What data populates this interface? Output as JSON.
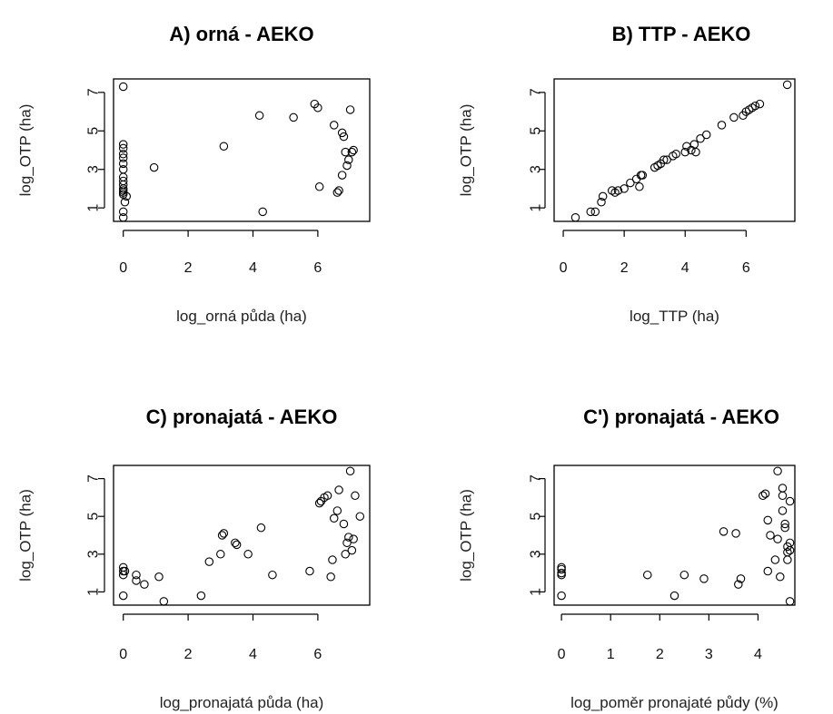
{
  "chart_data": [
    {
      "type": "scatter",
      "title": "A) orná - AEKO",
      "xlabel": "log_orná půda (ha)",
      "ylabel": "log_OTP (ha)",
      "xlim": [
        -0.3,
        7.6
      ],
      "ylim": [
        0.3,
        7.7
      ],
      "xticks": [
        0,
        2,
        4,
        6
      ],
      "yticks": [
        1,
        3,
        5,
        7
      ],
      "x": [
        0,
        0,
        0,
        0,
        0,
        0,
        0,
        0,
        0,
        0,
        0,
        0,
        0,
        0,
        0,
        0,
        0.05,
        0.1,
        0.95,
        3.1,
        4.2,
        4.3,
        5.25,
        5.9,
        6.0,
        6.05,
        6.5,
        6.6,
        6.65,
        6.75,
        6.75,
        6.8,
        6.85,
        6.9,
        6.95,
        7.0,
        7.05,
        7.1
      ],
      "y": [
        7.3,
        4.3,
        4.1,
        3.8,
        3.6,
        3.3,
        3.0,
        2.6,
        2.4,
        2.2,
        2.0,
        1.9,
        1.8,
        1.7,
        0.8,
        0.5,
        1.3,
        1.6,
        3.1,
        4.2,
        5.8,
        0.8,
        5.7,
        6.4,
        6.2,
        2.1,
        5.3,
        1.8,
        1.9,
        2.7,
        4.9,
        4.7,
        3.9,
        3.2,
        3.5,
        6.1,
        3.9,
        4.0
      ]
    },
    {
      "type": "scatter",
      "title": "B) TTP - AEKO",
      "xlabel": "log_TTP (ha)",
      "ylabel": "log_OTP (ha)",
      "xlim": [
        -0.3,
        7.6
      ],
      "ylim": [
        0.3,
        7.7
      ],
      "xticks": [
        0,
        2,
        4,
        6
      ],
      "yticks": [
        1,
        3,
        5,
        7
      ],
      "x": [
        0.4,
        0.9,
        1.05,
        1.25,
        1.3,
        1.6,
        1.7,
        1.8,
        2.0,
        2.2,
        2.4,
        2.5,
        2.55,
        2.6,
        3.0,
        3.1,
        3.2,
        3.3,
        3.4,
        3.6,
        3.7,
        4.0,
        4.05,
        4.2,
        4.3,
        4.35,
        4.5,
        4.7,
        5.2,
        5.6,
        5.9,
        6.0,
        6.1,
        6.2,
        6.3,
        6.45,
        7.35
      ],
      "y": [
        0.5,
        0.8,
        0.8,
        1.3,
        1.6,
        1.9,
        1.8,
        1.9,
        2.0,
        2.3,
        2.5,
        2.1,
        2.7,
        2.7,
        3.1,
        3.2,
        3.3,
        3.5,
        3.5,
        3.7,
        3.8,
        3.9,
        4.2,
        4.0,
        4.3,
        3.9,
        4.6,
        4.8,
        5.3,
        5.7,
        5.8,
        6.0,
        6.1,
        6.2,
        6.3,
        6.4,
        7.4
      ]
    },
    {
      "type": "scatter",
      "title": "C) pronajatá - AEKO",
      "xlabel": "log_pronajatá půda (ha)",
      "ylabel": "log_OTP (ha)",
      "xlim": [
        -0.3,
        7.6
      ],
      "ylim": [
        0.3,
        7.7
      ],
      "xticks": [
        0,
        2,
        4,
        6
      ],
      "yticks": [
        1,
        3,
        5,
        7
      ],
      "x": [
        0,
        0,
        0,
        0,
        0.05,
        0.4,
        0.4,
        0.65,
        1.1,
        1.25,
        2.4,
        2.65,
        3.0,
        3.05,
        3.1,
        3.45,
        3.5,
        3.85,
        4.25,
        4.6,
        5.75,
        6.05,
        6.1,
        6.2,
        6.3,
        6.4,
        6.45,
        6.5,
        6.6,
        6.65,
        6.8,
        6.85,
        6.9,
        6.95,
        7.0,
        7.05,
        7.1,
        7.15,
        7.3
      ],
      "y": [
        2.3,
        2.1,
        1.9,
        0.8,
        2.1,
        1.9,
        1.6,
        1.4,
        1.8,
        0.5,
        0.8,
        2.6,
        3.0,
        4.0,
        4.1,
        3.6,
        3.5,
        3.0,
        4.4,
        1.9,
        2.1,
        5.7,
        5.8,
        6.0,
        6.1,
        1.8,
        2.7,
        4.9,
        5.3,
        6.4,
        4.6,
        3.0,
        3.6,
        3.9,
        7.4,
        3.2,
        3.8,
        6.1,
        5.0
      ]
    },
    {
      "type": "scatter",
      "title": "C') pronajatá - AEKO",
      "xlabel": "log_poměr pronajaté půdy (%)",
      "ylabel": "log_OTP (ha)",
      "xlim": [
        -0.15,
        4.75
      ],
      "ylim": [
        0.3,
        7.7
      ],
      "xticks": [
        0,
        1,
        2,
        3,
        4
      ],
      "yticks": [
        1,
        3,
        5,
        7
      ],
      "x": [
        0,
        0,
        0,
        0,
        0,
        1.75,
        2.3,
        2.5,
        2.9,
        3.3,
        3.55,
        3.6,
        3.65,
        4.1,
        4.15,
        4.2,
        4.2,
        4.25,
        4.35,
        4.4,
        4.4,
        4.45,
        4.5,
        4.5,
        4.5,
        4.55,
        4.55,
        4.6,
        4.6,
        4.6,
        4.65,
        4.65,
        4.65,
        4.65
      ],
      "y": [
        2.3,
        2.2,
        2.0,
        1.9,
        0.8,
        1.9,
        0.8,
        1.9,
        1.7,
        4.2,
        4.1,
        1.4,
        1.7,
        6.1,
        6.2,
        4.8,
        2.1,
        4.0,
        2.7,
        7.4,
        3.8,
        1.8,
        6.5,
        6.1,
        5.3,
        4.6,
        4.4,
        3.4,
        3.1,
        2.7,
        5.8,
        3.6,
        3.2,
        0.5
      ]
    }
  ]
}
